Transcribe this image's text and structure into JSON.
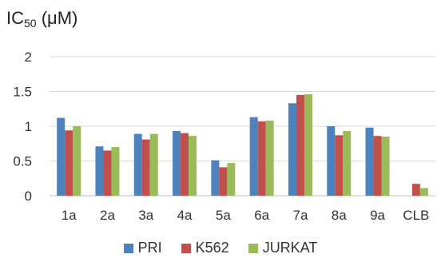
{
  "chart_data": {
    "type": "bar",
    "title_prefix": "IC",
    "title_sub": "50",
    "title_suffix": " (μM)",
    "categories": [
      "1a",
      "2a",
      "3a",
      "4a",
      "5a",
      "6a",
      "7a",
      "8a",
      "9a",
      "CLB"
    ],
    "series": [
      {
        "name": "PRI",
        "color": "#4F81BD",
        "values": [
          1.12,
          0.71,
          0.89,
          0.93,
          0.51,
          1.13,
          1.33,
          1.0,
          0.98,
          0.0
        ]
      },
      {
        "name": "K562",
        "color": "#C0504D",
        "values": [
          0.94,
          0.65,
          0.81,
          0.9,
          0.41,
          1.07,
          1.45,
          0.87,
          0.86,
          0.17
        ]
      },
      {
        "name": "JURKAT",
        "color": "#9BBB59",
        "values": [
          1.0,
          0.7,
          0.89,
          0.86,
          0.47,
          1.08,
          1.46,
          0.93,
          0.85,
          0.11
        ]
      }
    ],
    "yticks": [
      "0",
      "0.5",
      "1",
      "1.5",
      "2"
    ],
    "ylim": [
      0,
      2
    ],
    "grid": true,
    "legend_position": "bottom"
  }
}
